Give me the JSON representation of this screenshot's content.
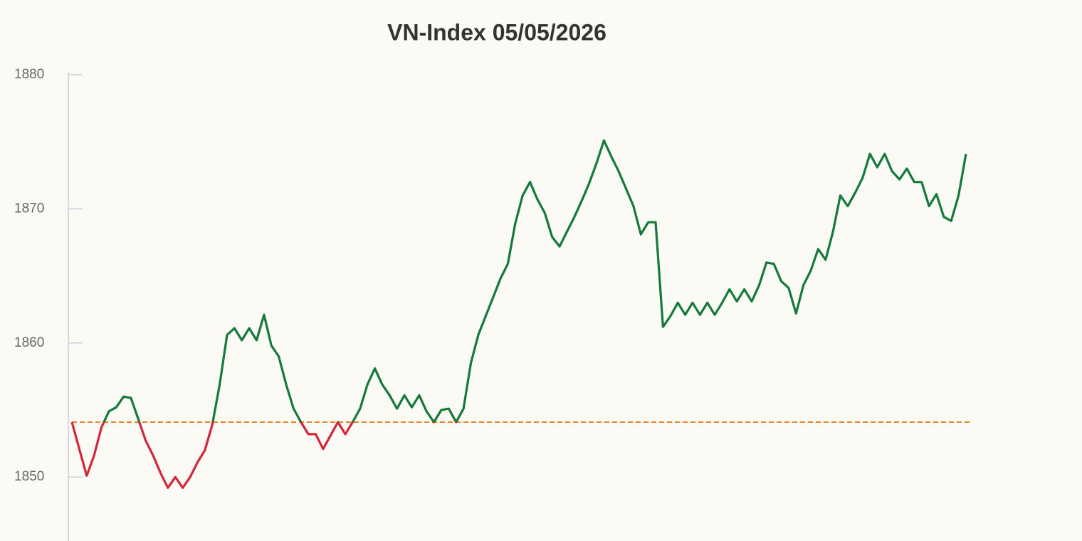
{
  "chart_data": {
    "type": "line",
    "title": "VN-Index 05/05/2026",
    "values": [
      1854.1,
      1852.1,
      1850.1,
      1851.6,
      1853.7,
      1854.9,
      1855.2,
      1856.0,
      1855.9,
      1854.3,
      1852.7,
      1851.6,
      1850.3,
      1849.2,
      1850.0,
      1849.2,
      1850.0,
      1851.1,
      1852.0,
      1853.9,
      1856.9,
      1860.6,
      1861.1,
      1860.2,
      1861.1,
      1860.2,
      1862.1,
      1859.8,
      1859.0,
      1856.9,
      1855.1,
      1854.1,
      1853.2,
      1853.2,
      1852.1,
      1853.1,
      1854.1,
      1853.2,
      1854.1,
      1855.1,
      1856.9,
      1858.1,
      1856.9,
      1856.1,
      1855.1,
      1856.1,
      1855.2,
      1856.1,
      1854.9,
      1854.1,
      1855.0,
      1855.1,
      1854.1,
      1855.1,
      1858.5,
      1860.6,
      1862.0,
      1863.4,
      1864.8,
      1865.9,
      1868.9,
      1871.0,
      1872.0,
      1870.7,
      1869.7,
      1867.9,
      1867.2,
      1868.3,
      1869.4,
      1870.6,
      1871.9,
      1873.4,
      1875.1,
      1873.9,
      1872.8,
      1871.5,
      1870.2,
      1868.1,
      1869.0,
      1869.0,
      1861.2,
      1862.0,
      1863.0,
      1862.1,
      1863.0,
      1862.1,
      1863.0,
      1862.1,
      1863.0,
      1864.0,
      1863.1,
      1864.0,
      1863.1,
      1864.3,
      1866.0,
      1865.9,
      1864.6,
      1864.1,
      1862.2,
      1864.3,
      1865.4,
      1867.0,
      1866.2,
      1868.3,
      1871.0,
      1870.2,
      1871.2,
      1872.3,
      1874.1,
      1873.1,
      1874.1,
      1872.8,
      1872.2,
      1873.0,
      1872.0,
      1872.0,
      1870.2,
      1871.1,
      1869.4,
      1869.1,
      1871.0,
      1874.1
    ],
    "ylim": [
      1845.5,
      1880
    ],
    "yticks": [
      1850,
      1860,
      1870,
      1880
    ],
    "reference": {
      "value": 1854.1,
      "color": "#e8842a"
    },
    "color_above": "#137a3a",
    "color_below": "#d0283a"
  }
}
